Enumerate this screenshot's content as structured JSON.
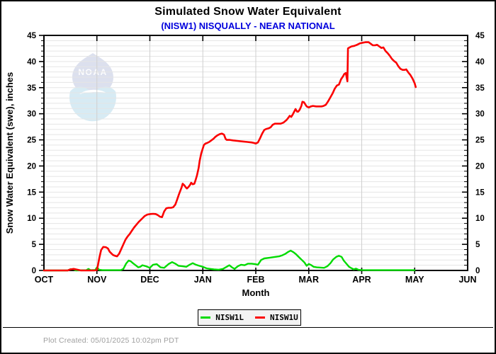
{
  "title": "Simulated Snow Water Equivalent",
  "subtitle": "(NISW1) NISQUALLY - NEAR NATIONAL",
  "subtitle_color": "#0000dd",
  "watermark": "NOAA",
  "footer": {
    "text": "Plot Created: 05/01/2025 10:02pm PDT"
  },
  "chart_data": {
    "type": "line",
    "title": "Simulated Snow Water Equivalent",
    "subtitle": "(NISW1) NISQUALLY - NEAR NATIONAL",
    "xlabel": "Month",
    "ylabel": "Snow Water Equivalent (swe),  inches",
    "x_ticks": [
      "OCT",
      "NOV",
      "DEC",
      "JAN",
      "FEB",
      "MAR",
      "APR",
      "MAY",
      "JUN"
    ],
    "x_unit": "months after OCT 1",
    "ylim": [
      0,
      45
    ],
    "y_major_step": 5,
    "y_minor_step": 1,
    "grid": {
      "on": true,
      "h_color": "#e5e5e5",
      "v_color": "#cfcfcf"
    },
    "legend": {
      "position": "bottom-center"
    },
    "series": [
      {
        "name": "NISW1L",
        "color": "#00db00",
        "width": 2.4,
        "points": [
          [
            0,
            0
          ],
          [
            0.45,
            0
          ],
          [
            0.5,
            0.25
          ],
          [
            0.56,
            0.25
          ],
          [
            0.6,
            0
          ],
          [
            0.8,
            0.05
          ],
          [
            0.84,
            0.3
          ],
          [
            0.88,
            0.05
          ],
          [
            0.97,
            0.1
          ],
          [
            1,
            0.6
          ],
          [
            1.04,
            0.15
          ],
          [
            1.1,
            0.05
          ],
          [
            1.45,
            0.05
          ],
          [
            1.5,
            0.3
          ],
          [
            1.55,
            1.3
          ],
          [
            1.6,
            1.9
          ],
          [
            1.64,
            1.75
          ],
          [
            1.68,
            1.4
          ],
          [
            1.73,
            1
          ],
          [
            1.78,
            0.6
          ],
          [
            1.82,
            0.7
          ],
          [
            1.86,
            1
          ],
          [
            1.93,
            0.8
          ],
          [
            2,
            0.5
          ],
          [
            2.06,
            1.1
          ],
          [
            2.13,
            1.2
          ],
          [
            2.2,
            0.6
          ],
          [
            2.27,
            0.5
          ],
          [
            2.35,
            1.2
          ],
          [
            2.42,
            1.6
          ],
          [
            2.48,
            1.3
          ],
          [
            2.54,
            0.9
          ],
          [
            2.62,
            0.8
          ],
          [
            2.69,
            0.7
          ],
          [
            2.75,
            1.1
          ],
          [
            2.81,
            1.4
          ],
          [
            2.87,
            1.1
          ],
          [
            2.93,
            0.9
          ],
          [
            3,
            0.7
          ],
          [
            3.07,
            0.4
          ],
          [
            3.14,
            0.3
          ],
          [
            3.21,
            0.2
          ],
          [
            3.3,
            0.15
          ],
          [
            3.38,
            0.3
          ],
          [
            3.45,
            0.7
          ],
          [
            3.5,
            1
          ],
          [
            3.55,
            0.6
          ],
          [
            3.6,
            0.3
          ],
          [
            3.66,
            0.8
          ],
          [
            3.72,
            1.1
          ],
          [
            3.79,
            1
          ],
          [
            3.85,
            1.3
          ],
          [
            3.92,
            1.3
          ],
          [
            3.99,
            1.2
          ],
          [
            4.04,
            1.1
          ],
          [
            4.1,
            2
          ],
          [
            4.16,
            2.3
          ],
          [
            4.23,
            2.4
          ],
          [
            4.3,
            2.5
          ],
          [
            4.37,
            2.6
          ],
          [
            4.44,
            2.7
          ],
          [
            4.5,
            2.9
          ],
          [
            4.56,
            3.2
          ],
          [
            4.62,
            3.6
          ],
          [
            4.66,
            3.8
          ],
          [
            4.71,
            3.5
          ],
          [
            4.76,
            3.1
          ],
          [
            4.82,
            2.5
          ],
          [
            4.87,
            2
          ],
          [
            4.92,
            1.5
          ],
          [
            4.96,
            0.9
          ],
          [
            5,
            1.25
          ],
          [
            5.05,
            1
          ],
          [
            5.09,
            0.7
          ],
          [
            5.15,
            0.6
          ],
          [
            5.22,
            0.55
          ],
          [
            5.29,
            0.5
          ],
          [
            5.35,
            0.8
          ],
          [
            5.41,
            1.4
          ],
          [
            5.46,
            2.1
          ],
          [
            5.52,
            2.6
          ],
          [
            5.57,
            2.8
          ],
          [
            5.62,
            2.6
          ],
          [
            5.66,
            1.9
          ],
          [
            5.71,
            1.3
          ],
          [
            5.76,
            0.7
          ],
          [
            5.81,
            0.4
          ],
          [
            5.85,
            0.2
          ],
          [
            5.89,
            0.35
          ],
          [
            5.94,
            0.12
          ],
          [
            6,
            0.08
          ],
          [
            6.3,
            0.05
          ],
          [
            6.6,
            0.05
          ],
          [
            7,
            0.05
          ]
        ]
      },
      {
        "name": "NISW1U",
        "color": "#fb0000",
        "width": 2.6,
        "points": [
          [
            0,
            0
          ],
          [
            0.45,
            0
          ],
          [
            0.5,
            0.2
          ],
          [
            0.56,
            0.3
          ],
          [
            0.63,
            0.15
          ],
          [
            0.7,
            0
          ],
          [
            0.95,
            0
          ],
          [
            1,
            0.1
          ],
          [
            1.02,
            1
          ],
          [
            1.05,
            2.6
          ],
          [
            1.08,
            3.9
          ],
          [
            1.12,
            4.5
          ],
          [
            1.17,
            4.45
          ],
          [
            1.21,
            4.2
          ],
          [
            1.24,
            3.6
          ],
          [
            1.3,
            3
          ],
          [
            1.34,
            2.8
          ],
          [
            1.38,
            2.7
          ],
          [
            1.42,
            3.2
          ],
          [
            1.46,
            4.1
          ],
          [
            1.5,
            5
          ],
          [
            1.54,
            5.9
          ],
          [
            1.58,
            6.5
          ],
          [
            1.62,
            7
          ],
          [
            1.66,
            7.6
          ],
          [
            1.7,
            8.2
          ],
          [
            1.74,
            8.7
          ],
          [
            1.79,
            9.3
          ],
          [
            1.85,
            9.9
          ],
          [
            1.9,
            10.4
          ],
          [
            1.95,
            10.7
          ],
          [
            2.01,
            10.8
          ],
          [
            2.06,
            10.85
          ],
          [
            2.11,
            10.8
          ],
          [
            2.15,
            10.6
          ],
          [
            2.19,
            10.3
          ],
          [
            2.23,
            10.2
          ],
          [
            2.27,
            11.3
          ],
          [
            2.31,
            11.9
          ],
          [
            2.35,
            12
          ],
          [
            2.4,
            12
          ],
          [
            2.44,
            12.1
          ],
          [
            2.48,
            12.6
          ],
          [
            2.51,
            13.4
          ],
          [
            2.55,
            14.6
          ],
          [
            2.6,
            15.9
          ],
          [
            2.62,
            16.6
          ],
          [
            2.65,
            16.3
          ],
          [
            2.68,
            15.9
          ],
          [
            2.7,
            15.7
          ],
          [
            2.73,
            16
          ],
          [
            2.76,
            16.4
          ],
          [
            2.78,
            16.8
          ],
          [
            2.81,
            16.5
          ],
          [
            2.84,
            16.6
          ],
          [
            2.86,
            17.2
          ],
          [
            2.89,
            18.2
          ],
          [
            2.92,
            19.6
          ],
          [
            2.94,
            21
          ],
          [
            2.97,
            22.4
          ],
          [
            3,
            23.4
          ],
          [
            3.02,
            24
          ],
          [
            3.05,
            24.3
          ],
          [
            3.08,
            24.4
          ],
          [
            3.12,
            24.6
          ],
          [
            3.16,
            24.9
          ],
          [
            3.2,
            25.2
          ],
          [
            3.24,
            25.6
          ],
          [
            3.28,
            25.9
          ],
          [
            3.32,
            26.1
          ],
          [
            3.36,
            26.2
          ],
          [
            3.4,
            26
          ],
          [
            3.43,
            25.2
          ],
          [
            3.45,
            25
          ],
          [
            3.51,
            25
          ],
          [
            3.57,
            24.9
          ],
          [
            3.65,
            24.8
          ],
          [
            3.75,
            24.7
          ],
          [
            3.84,
            24.6
          ],
          [
            3.92,
            24.5
          ],
          [
            3.97,
            24.4
          ],
          [
            4,
            24.3
          ],
          [
            4.04,
            24.5
          ],
          [
            4.08,
            25.3
          ],
          [
            4.12,
            26.2
          ],
          [
            4.16,
            26.9
          ],
          [
            4.2,
            27.1
          ],
          [
            4.24,
            27.2
          ],
          [
            4.28,
            27.4
          ],
          [
            4.32,
            27.9
          ],
          [
            4.36,
            28.1
          ],
          [
            4.42,
            28.1
          ],
          [
            4.47,
            28.1
          ],
          [
            4.52,
            28.3
          ],
          [
            4.58,
            28.8
          ],
          [
            4.62,
            29.3
          ],
          [
            4.64,
            29.6
          ],
          [
            4.67,
            29.4
          ],
          [
            4.7,
            29.9
          ],
          [
            4.72,
            30.3
          ],
          [
            4.75,
            30.9
          ],
          [
            4.78,
            30.4
          ],
          [
            4.8,
            30.4
          ],
          [
            4.83,
            30.8
          ],
          [
            4.86,
            31.5
          ],
          [
            4.88,
            32.3
          ],
          [
            4.91,
            32.2
          ],
          [
            4.94,
            31.7
          ],
          [
            4.96,
            31.4
          ],
          [
            5,
            31.2
          ],
          [
            5.04,
            31.4
          ],
          [
            5.08,
            31.5
          ],
          [
            5.14,
            31.4
          ],
          [
            5.19,
            31.4
          ],
          [
            5.24,
            31.4
          ],
          [
            5.28,
            31.5
          ],
          [
            5.32,
            31.7
          ],
          [
            5.36,
            32.3
          ],
          [
            5.4,
            33
          ],
          [
            5.45,
            33.9
          ],
          [
            5.49,
            34.8
          ],
          [
            5.53,
            35.4
          ],
          [
            5.57,
            35.6
          ],
          [
            5.61,
            36.6
          ],
          [
            5.65,
            37.2
          ],
          [
            5.67,
            37.6
          ],
          [
            5.7,
            37.8
          ],
          [
            5.73,
            36.2
          ],
          [
            5.74,
            42.5
          ],
          [
            5.77,
            42.7
          ],
          [
            5.81,
            42.9
          ],
          [
            5.86,
            43
          ],
          [
            5.91,
            43.2
          ],
          [
            5.97,
            43.5
          ],
          [
            6.02,
            43.6
          ],
          [
            6.07,
            43.7
          ],
          [
            6.13,
            43.7
          ],
          [
            6.17,
            43.4
          ],
          [
            6.21,
            43.1
          ],
          [
            6.25,
            43.1
          ],
          [
            6.29,
            43.2
          ],
          [
            6.33,
            42.9
          ],
          [
            6.37,
            42.6
          ],
          [
            6.41,
            42.7
          ],
          [
            6.45,
            42
          ],
          [
            6.49,
            41.6
          ],
          [
            6.53,
            41.1
          ],
          [
            6.57,
            40.5
          ],
          [
            6.61,
            40.1
          ],
          [
            6.65,
            39.8
          ],
          [
            6.69,
            39.1
          ],
          [
            6.73,
            38.6
          ],
          [
            6.77,
            38.4
          ],
          [
            6.81,
            38.4
          ],
          [
            6.84,
            38.5
          ],
          [
            6.88,
            37.9
          ],
          [
            6.92,
            37.4
          ],
          [
            6.96,
            36.7
          ],
          [
            7,
            35.8
          ],
          [
            7.02,
            35.1
          ]
        ]
      }
    ]
  }
}
